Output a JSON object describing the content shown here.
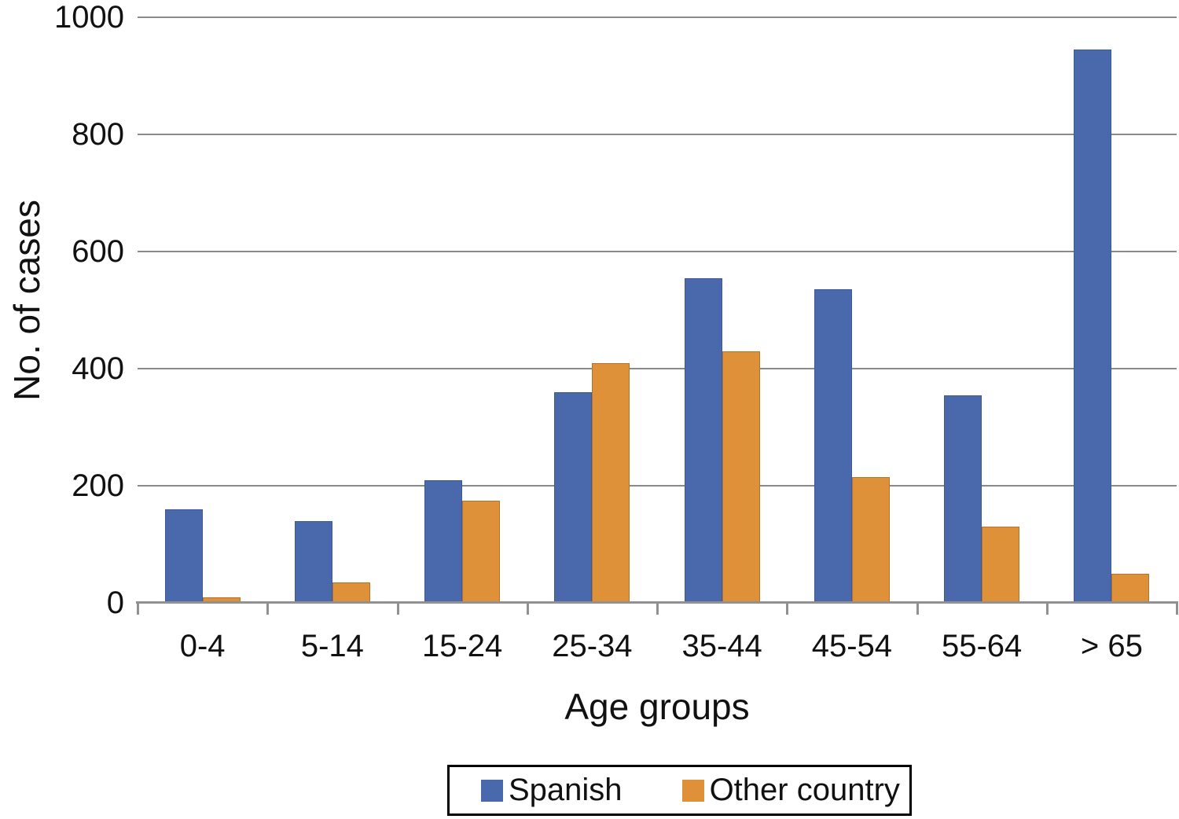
{
  "chart_data": {
    "type": "bar",
    "title": "",
    "xlabel": "Age groups",
    "ylabel": "No. of cases",
    "categories": [
      "0-4",
      "5-14",
      "15-24",
      "25-34",
      "35-44",
      "45-54",
      "55-64",
      "> 65"
    ],
    "series": [
      {
        "name": "Spanish",
        "color": "#4a69ad",
        "edge": "#3e5a96",
        "values": [
          160,
          140,
          210,
          360,
          555,
          535,
          355,
          945
        ]
      },
      {
        "name": "Other country",
        "color": "#de9138",
        "edge": "#b4722a",
        "values": [
          10,
          35,
          175,
          410,
          430,
          215,
          130,
          50
        ]
      }
    ],
    "ylim": [
      0,
      1000
    ],
    "y_ticks": [
      0,
      200,
      400,
      600,
      800,
      1000
    ],
    "grid": true,
    "legend_position": "bottom-center-boxed"
  },
  "colors": {
    "gridline": "#8a8a8a",
    "axis": "#919191",
    "text": "#111111",
    "background": "#ffffff"
  }
}
